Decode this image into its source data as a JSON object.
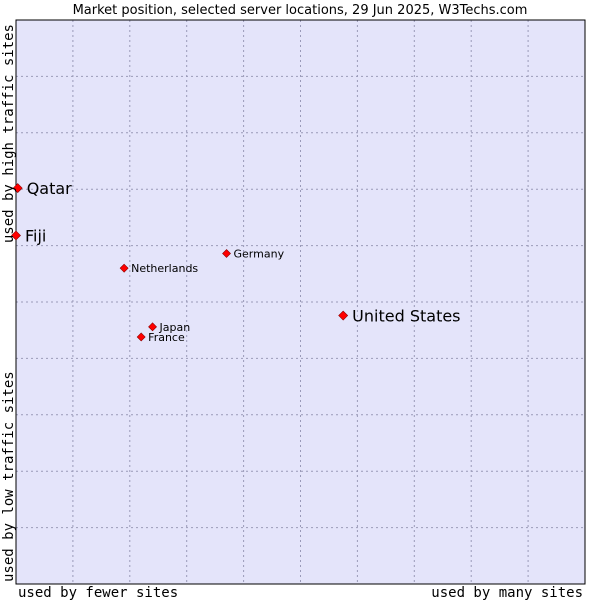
{
  "chart_data": {
    "type": "scatter",
    "title": "Market position, selected server locations, 29 Jun 2025, W3Techs.com",
    "xlabel_low": "used by fewer sites",
    "xlabel_high": "used by many sites",
    "ylabel_low": "used by low traffic sites",
    "ylabel_high": "used by high traffic sites",
    "xlim": [
      0,
      100
    ],
    "ylim": [
      0,
      100
    ],
    "grid": true,
    "points": [
      {
        "label": "Qatar",
        "x": 0.3,
        "y": 70.2,
        "size": "large"
      },
      {
        "label": "Fiji",
        "x": 0.0,
        "y": 61.8,
        "size": "large"
      },
      {
        "label": "Germany",
        "x": 37.0,
        "y": 58.6,
        "size": "small"
      },
      {
        "label": "Netherlands",
        "x": 19.0,
        "y": 56.0,
        "size": "small"
      },
      {
        "label": "United States",
        "x": 57.5,
        "y": 47.6,
        "size": "large"
      },
      {
        "label": "Japan",
        "x": 24.0,
        "y": 45.6,
        "size": "small"
      },
      {
        "label": "France",
        "x": 22.0,
        "y": 43.8,
        "size": "small"
      }
    ]
  },
  "colors": {
    "plot_bg": "#e4e4fa",
    "grid": "#9a9ab8",
    "marker": "#ff0000",
    "axis": "#000000"
  }
}
